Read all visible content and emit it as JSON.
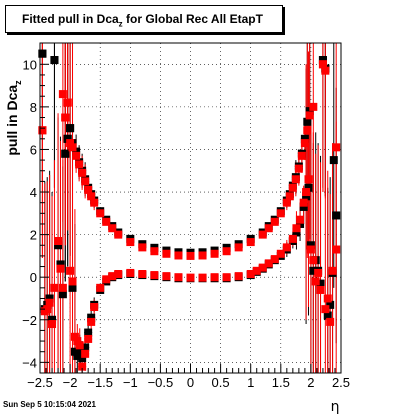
{
  "chart_data": {
    "type": "scatter",
    "title": {
      "main": "Fitted pull in Dca",
      "sub": "z",
      "rest": " for Global Rec All EtapT"
    },
    "xlabel": "η",
    "ylabel": {
      "main": "pull in Dca",
      "sub": "z"
    },
    "xlim": [
      -2.5,
      2.5
    ],
    "ylim": [
      -4.5,
      11
    ],
    "xticks": [
      "−2.5",
      "−2",
      "−1.5",
      "−1",
      "−0.5",
      "0",
      "0.5",
      "1",
      "1.5",
      "2",
      "2.5"
    ],
    "yticks": [
      "−4",
      "−2",
      "0",
      "2",
      "4",
      "6",
      "8",
      "10"
    ],
    "grid": true,
    "series": [
      {
        "color": "#000000",
        "kind": "sigma",
        "points": [
          [
            -2.46,
            10.5
          ],
          [
            -2.42,
            -1.5
          ],
          [
            -2.38,
            -1.3
          ],
          [
            -2.34,
            -1.0
          ],
          [
            -2.3,
            -2.0
          ],
          [
            -2.26,
            10.2
          ],
          [
            -2.2,
            1.5
          ],
          [
            -2.16,
            0.6
          ],
          [
            -2.12,
            -0.8
          ],
          [
            -2.08,
            5.8
          ],
          [
            -2.04,
            6.5
          ],
          [
            -2.0,
            7.0
          ],
          [
            -1.96,
            -0.5
          ],
          [
            -1.92,
            -3.5
          ],
          [
            -1.88,
            -3.7
          ],
          [
            -1.84,
            -3.5
          ],
          [
            -1.8,
            -3.8
          ],
          [
            -1.75,
            -3.3
          ],
          [
            -1.7,
            -2.6
          ],
          [
            -1.65,
            -1.9
          ],
          [
            -1.6,
            -1.3
          ],
          [
            -1.5,
            -0.6
          ],
          [
            -1.4,
            -0.2
          ],
          [
            -1.3,
            0.0
          ],
          [
            -1.2,
            0.1
          ],
          [
            -1.0,
            0.15
          ],
          [
            -0.8,
            0.1
          ],
          [
            -0.6,
            0.05
          ],
          [
            -0.4,
            0.0
          ],
          [
            -0.2,
            -0.05
          ],
          [
            0.0,
            -0.05
          ],
          [
            0.2,
            -0.05
          ],
          [
            0.4,
            -0.05
          ],
          [
            0.6,
            -0.05
          ],
          [
            0.8,
            0.0
          ],
          [
            1.0,
            0.1
          ],
          [
            1.1,
            0.25
          ],
          [
            1.2,
            0.4
          ],
          [
            1.3,
            0.6
          ],
          [
            1.4,
            0.8
          ],
          [
            1.5,
            1.0
          ],
          [
            1.6,
            1.3
          ],
          [
            1.7,
            1.7
          ],
          [
            1.76,
            2.1
          ],
          [
            1.82,
            2.5
          ],
          [
            1.88,
            3.3
          ],
          [
            1.92,
            3.8
          ],
          [
            1.96,
            4.2
          ],
          [
            2.0,
            1.5
          ],
          [
            2.04,
            0.3
          ],
          [
            2.08,
            0.8
          ],
          [
            2.12,
            0.3
          ],
          [
            2.16,
            -0.3
          ],
          [
            2.2,
            10.2
          ],
          [
            2.24,
            9.8
          ],
          [
            2.28,
            -1.8
          ],
          [
            2.32,
            -1.3
          ],
          [
            2.36,
            0.2
          ],
          [
            2.42,
            2.9
          ]
        ]
      },
      {
        "color": "#000000",
        "kind": "mean",
        "points": [
          [
            -2.46,
            10.5
          ],
          [
            -2.26,
            10.2
          ],
          [
            -2.08,
            5.8
          ],
          [
            -2.04,
            6.5
          ],
          [
            -2.0,
            7.0
          ],
          [
            -1.96,
            6.3
          ],
          [
            -1.9,
            5.9
          ],
          [
            -1.85,
            5.4
          ],
          [
            -1.8,
            5.0
          ],
          [
            -1.75,
            4.6
          ],
          [
            -1.7,
            4.2
          ],
          [
            -1.65,
            3.9
          ],
          [
            -1.6,
            3.6
          ],
          [
            -1.5,
            3.1
          ],
          [
            -1.4,
            2.7
          ],
          [
            -1.3,
            2.4
          ],
          [
            -1.2,
            2.1
          ],
          [
            -1.0,
            1.8
          ],
          [
            -0.8,
            1.55
          ],
          [
            -0.6,
            1.38
          ],
          [
            -0.4,
            1.25
          ],
          [
            -0.2,
            1.17
          ],
          [
            0.0,
            1.15
          ],
          [
            0.2,
            1.17
          ],
          [
            0.4,
            1.25
          ],
          [
            0.6,
            1.38
          ],
          [
            0.8,
            1.55
          ],
          [
            1.0,
            1.8
          ],
          [
            1.2,
            2.1
          ],
          [
            1.3,
            2.4
          ],
          [
            1.4,
            2.7
          ],
          [
            1.5,
            3.1
          ],
          [
            1.6,
            3.6
          ],
          [
            1.65,
            3.9
          ],
          [
            1.7,
            4.3
          ],
          [
            1.75,
            4.7
          ],
          [
            1.8,
            5.2
          ],
          [
            1.85,
            5.8
          ],
          [
            1.9,
            6.5
          ],
          [
            1.94,
            7.3
          ],
          [
            1.98,
            7.8
          ],
          [
            2.2,
            10.2
          ],
          [
            2.24,
            9.8
          ],
          [
            2.38,
            5.5
          ]
        ]
      },
      {
        "color": "#ff0000",
        "kind": "sigma",
        "points": [
          [
            -2.46,
            6.9
          ],
          [
            -2.42,
            -1.6
          ],
          [
            -2.38,
            -1.5
          ],
          [
            -2.34,
            -1.2
          ],
          [
            -2.3,
            -2.2
          ],
          [
            -2.26,
            -0.5
          ],
          [
            -2.2,
            1.7
          ],
          [
            -2.16,
            0.4
          ],
          [
            -2.12,
            -0.5
          ],
          [
            -2.08,
            7.5
          ],
          [
            -2.04,
            8.2
          ],
          [
            -2.0,
            0.3
          ],
          [
            -1.96,
            -0.2
          ],
          [
            -1.92,
            -2.8
          ],
          [
            -1.88,
            -3.0
          ],
          [
            -1.84,
            -3.2
          ],
          [
            -1.8,
            -4.2
          ],
          [
            -1.75,
            -3.6
          ],
          [
            -1.7,
            -2.9
          ],
          [
            -1.65,
            -2.1
          ],
          [
            -1.6,
            -1.4
          ],
          [
            -1.5,
            -0.5
          ],
          [
            -1.4,
            -0.1
          ],
          [
            -1.3,
            0.05
          ],
          [
            -1.2,
            0.15
          ],
          [
            -1.0,
            0.2
          ],
          [
            -0.8,
            0.15
          ],
          [
            -0.6,
            0.1
          ],
          [
            -0.4,
            0.05
          ],
          [
            -0.2,
            0.0
          ],
          [
            0.0,
            -0.02
          ],
          [
            0.2,
            -0.02
          ],
          [
            0.4,
            0.0
          ],
          [
            0.6,
            0.0
          ],
          [
            0.8,
            0.05
          ],
          [
            1.0,
            0.15
          ],
          [
            1.1,
            0.3
          ],
          [
            1.2,
            0.45
          ],
          [
            1.3,
            0.65
          ],
          [
            1.4,
            0.85
          ],
          [
            1.5,
            1.1
          ],
          [
            1.6,
            1.4
          ],
          [
            1.7,
            1.8
          ],
          [
            1.76,
            2.3
          ],
          [
            1.82,
            2.7
          ],
          [
            1.88,
            3.5
          ],
          [
            1.92,
            4.0
          ],
          [
            1.96,
            4.6
          ],
          [
            2.0,
            1.3
          ],
          [
            2.04,
            0.8
          ],
          [
            2.08,
            -0.2
          ],
          [
            2.12,
            0.2
          ],
          [
            2.16,
            -0.6
          ],
          [
            2.2,
            10.0
          ],
          [
            2.24,
            -1.5
          ],
          [
            2.28,
            -1.0
          ],
          [
            2.32,
            -2.1
          ],
          [
            2.36,
            0.3
          ],
          [
            2.42,
            1.3
          ]
        ]
      },
      {
        "color": "#ff0000",
        "kind": "mean",
        "points": [
          [
            -2.46,
            6.9
          ],
          [
            -2.12,
            8.6
          ],
          [
            -2.08,
            7.5
          ],
          [
            -2.04,
            8.2
          ],
          [
            -2.0,
            6.3
          ],
          [
            -1.96,
            6.1
          ],
          [
            -1.9,
            5.7
          ],
          [
            -1.85,
            5.3
          ],
          [
            -1.8,
            4.9
          ],
          [
            -1.75,
            4.5
          ],
          [
            -1.7,
            4.1
          ],
          [
            -1.65,
            3.8
          ],
          [
            -1.6,
            3.5
          ],
          [
            -1.5,
            3.0
          ],
          [
            -1.4,
            2.6
          ],
          [
            -1.3,
            2.3
          ],
          [
            -1.2,
            2.0
          ],
          [
            -1.0,
            1.65
          ],
          [
            -0.8,
            1.4
          ],
          [
            -0.6,
            1.22
          ],
          [
            -0.4,
            1.1
          ],
          [
            -0.2,
            1.02
          ],
          [
            0.0,
            1.0
          ],
          [
            0.2,
            1.02
          ],
          [
            0.4,
            1.1
          ],
          [
            0.6,
            1.22
          ],
          [
            0.8,
            1.4
          ],
          [
            1.0,
            1.65
          ],
          [
            1.2,
            2.0
          ],
          [
            1.3,
            2.3
          ],
          [
            1.4,
            2.6
          ],
          [
            1.5,
            3.0
          ],
          [
            1.6,
            3.5
          ],
          [
            1.65,
            3.8
          ],
          [
            1.7,
            4.2
          ],
          [
            1.75,
            4.6
          ],
          [
            1.8,
            5.1
          ],
          [
            1.85,
            5.7
          ],
          [
            1.9,
            6.3
          ],
          [
            1.94,
            6.9
          ],
          [
            1.98,
            7.6
          ],
          [
            2.04,
            8.0
          ],
          [
            2.2,
            10.0
          ],
          [
            2.24,
            9.7
          ],
          [
            2.42,
            6.1
          ]
        ]
      }
    ]
  },
  "footer": {
    "date": "Sun Sep  5 10:15:04 2021"
  }
}
